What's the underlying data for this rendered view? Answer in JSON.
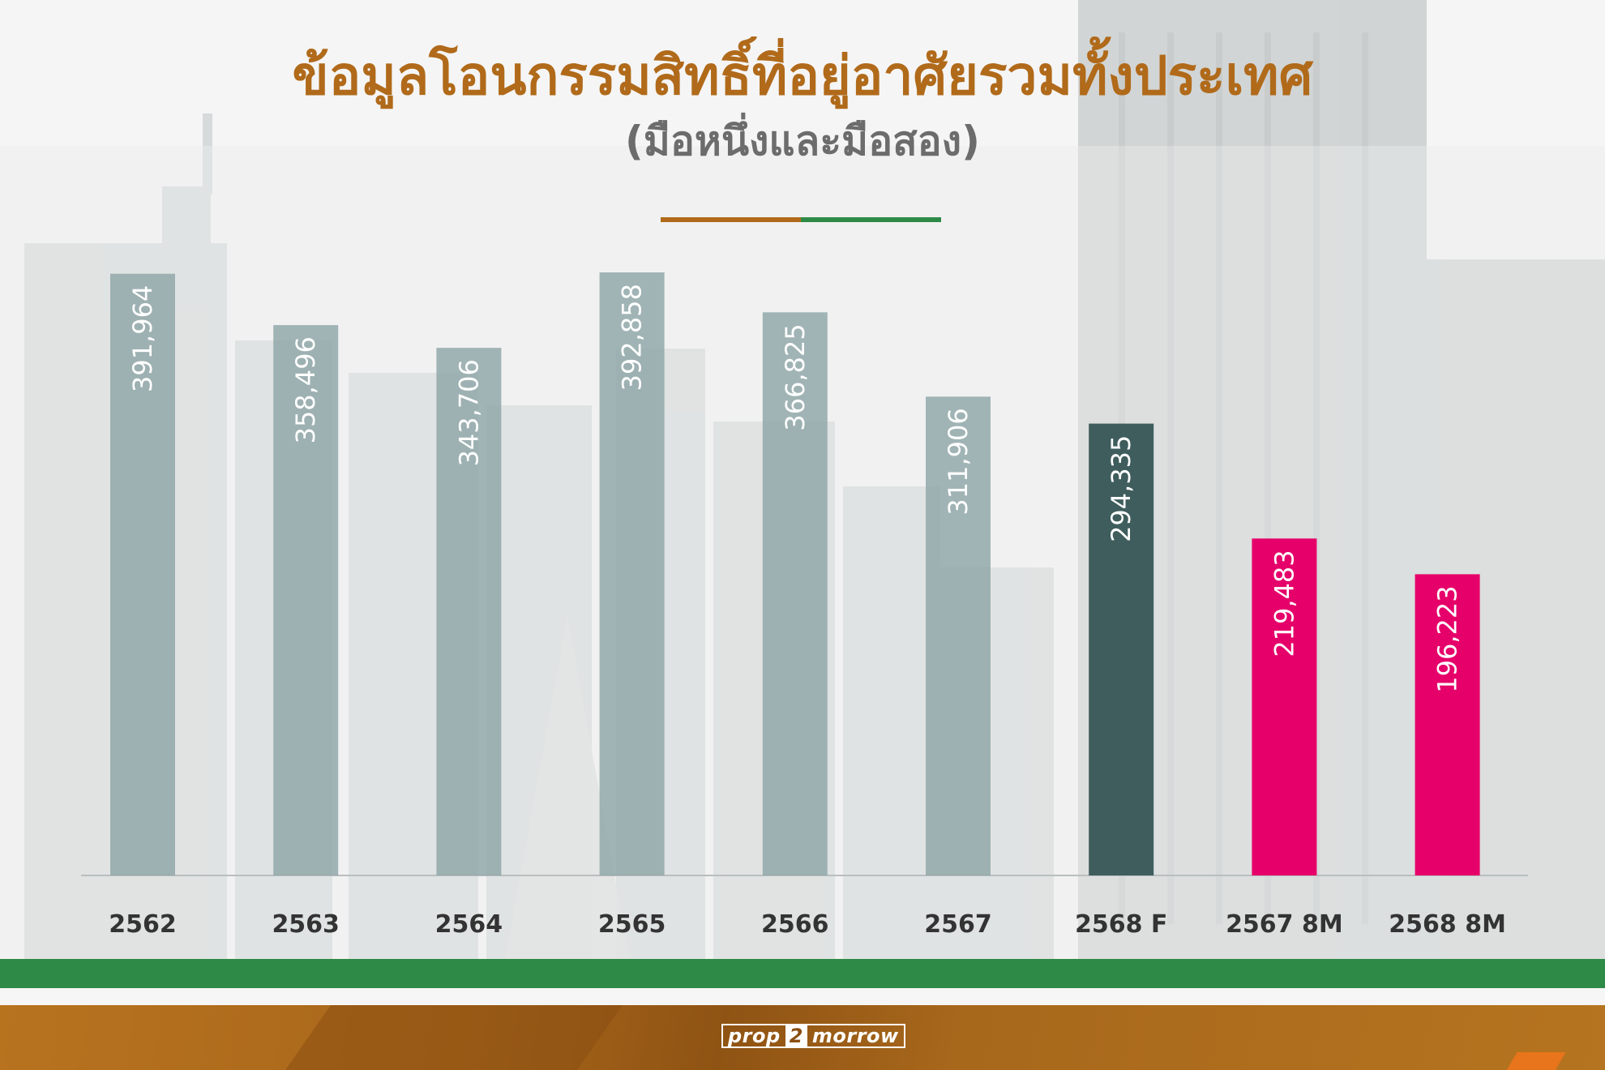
{
  "header": {
    "title": "ข้อมูลโอนกรรมสิทธิ์ที่อยู่อาศัยรวมทั้งประเทศ",
    "subtitle": "(มือหนึ่งและมือสอง)"
  },
  "brand": {
    "logo_part1": "prop",
    "logo_part2": "2",
    "logo_part3": "morrow"
  },
  "colors": {
    "title": "#b06a1a",
    "historical_bar": "#8fa6a7",
    "forecast_bar": "#3f5d5d",
    "ytd_bar": "#e6006a",
    "green_band": "#2e8a47",
    "footer": "#a7661a"
  },
  "chart_data": {
    "type": "bar",
    "categories": [
      "2562",
      "2563",
      "2564",
      "2565",
      "2566",
      "2567",
      "2568 F",
      "2567 8M",
      "2568 8M"
    ],
    "values": [
      391964,
      358496,
      343706,
      392858,
      366825,
      311906,
      294335,
      219483,
      196223
    ],
    "value_labels": [
      "391,964",
      "358,496",
      "343,706",
      "392,858",
      "366,825",
      "311,906",
      "294,335",
      "219,483",
      "196,223"
    ],
    "bar_groups": [
      "historical",
      "historical",
      "historical",
      "historical",
      "historical",
      "historical",
      "forecast",
      "ytd",
      "ytd"
    ],
    "title": "ข้อมูลโอนกรรมสิทธิ์ที่อยู่อาศัยรวมทั้งประเทศ",
    "subtitle": "(มือหนึ่งและมือสอง)",
    "xlabel": "",
    "ylabel": "",
    "ylim": [
      0,
      392858
    ],
    "grid": false,
    "legend": "none",
    "data_label_orientation": "vertical"
  }
}
